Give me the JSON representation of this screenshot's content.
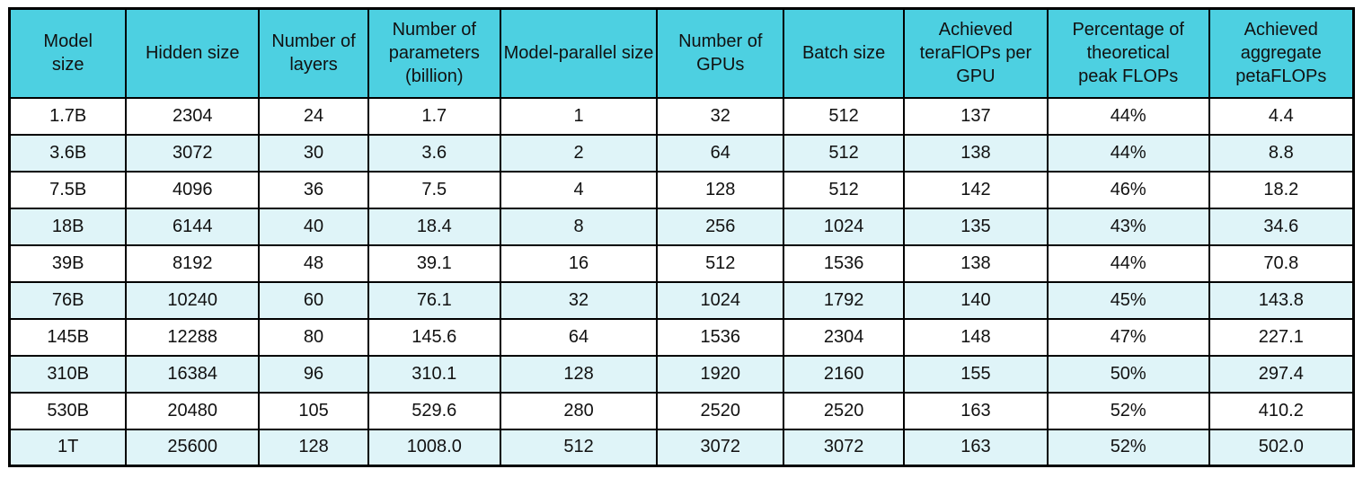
{
  "colors": {
    "header_bg": "#4DD0E1",
    "stripe_bg": "#DFF4F8",
    "border": "#000000",
    "text": "#111111"
  },
  "table": {
    "columns": [
      {
        "id": "model-size",
        "label": "Model size"
      },
      {
        "id": "hidden-size",
        "label": "Hidden size"
      },
      {
        "id": "num-layers",
        "label": "Number of layers"
      },
      {
        "id": "num-parameters-billion",
        "label": "Number of parameters (billion)"
      },
      {
        "id": "model-parallel-size",
        "label": "Model-parallel size"
      },
      {
        "id": "num-gpus",
        "label": "Number of GPUs"
      },
      {
        "id": "batch-size",
        "label": "Batch size"
      },
      {
        "id": "achieved-teraflops-per-gpu",
        "label": "Achieved teraFlOPs per GPU"
      },
      {
        "id": "pct-theoretical-peak-flops",
        "label": "Percentage of theoretical peak FLOPs"
      },
      {
        "id": "achieved-aggregate-petaflops",
        "label": "Achieved aggregate petaFLOPs"
      }
    ],
    "rows": [
      [
        "1.7B",
        "2304",
        "24",
        "1.7",
        "1",
        "32",
        "512",
        "137",
        "44%",
        "4.4"
      ],
      [
        "3.6B",
        "3072",
        "30",
        "3.6",
        "2",
        "64",
        "512",
        "138",
        "44%",
        "8.8"
      ],
      [
        "7.5B",
        "4096",
        "36",
        "7.5",
        "4",
        "128",
        "512",
        "142",
        "46%",
        "18.2"
      ],
      [
        "18B",
        "6144",
        "40",
        "18.4",
        "8",
        "256",
        "1024",
        "135",
        "43%",
        "34.6"
      ],
      [
        "39B",
        "8192",
        "48",
        "39.1",
        "16",
        "512",
        "1536",
        "138",
        "44%",
        "70.8"
      ],
      [
        "76B",
        "10240",
        "60",
        "76.1",
        "32",
        "1024",
        "1792",
        "140",
        "45%",
        "143.8"
      ],
      [
        "145B",
        "12288",
        "80",
        "145.6",
        "64",
        "1536",
        "2304",
        "148",
        "47%",
        "227.1"
      ],
      [
        "310B",
        "16384",
        "96",
        "310.1",
        "128",
        "1920",
        "2160",
        "155",
        "50%",
        "297.4"
      ],
      [
        "530B",
        "20480",
        "105",
        "529.6",
        "280",
        "2520",
        "2520",
        "163",
        "52%",
        "410.2"
      ],
      [
        "1T",
        "25600",
        "128",
        "1008.0",
        "512",
        "3072",
        "3072",
        "163",
        "52%",
        "502.0"
      ]
    ]
  },
  "chart_data": {
    "type": "table",
    "title": "",
    "columns": [
      "Model size",
      "Hidden size",
      "Number of layers",
      "Number of parameters (billion)",
      "Model-parallel size",
      "Number of GPUs",
      "Batch size",
      "Achieved teraFlOPs per GPU",
      "Percentage of theoretical peak FLOPs",
      "Achieved aggregate petaFLOPs"
    ],
    "rows": [
      [
        "1.7B",
        2304,
        24,
        1.7,
        1,
        32,
        512,
        137,
        "44%",
        4.4
      ],
      [
        "3.6B",
        3072,
        30,
        3.6,
        2,
        64,
        512,
        138,
        "44%",
        8.8
      ],
      [
        "7.5B",
        4096,
        36,
        7.5,
        4,
        128,
        512,
        142,
        "46%",
        18.2
      ],
      [
        "18B",
        6144,
        40,
        18.4,
        8,
        256,
        1024,
        135,
        "43%",
        34.6
      ],
      [
        "39B",
        8192,
        48,
        39.1,
        16,
        512,
        1536,
        138,
        "44%",
        70.8
      ],
      [
        "76B",
        10240,
        60,
        76.1,
        32,
        1024,
        1792,
        140,
        "45%",
        143.8
      ],
      [
        "145B",
        12288,
        80,
        145.6,
        64,
        1536,
        2304,
        148,
        "47%",
        227.1
      ],
      [
        "310B",
        16384,
        96,
        310.1,
        128,
        1920,
        2160,
        155,
        "50%",
        297.4
      ],
      [
        "530B",
        20480,
        105,
        529.6,
        280,
        2520,
        2520,
        163,
        "52%",
        410.2
      ],
      [
        "1T",
        25600,
        128,
        1008.0,
        512,
        3072,
        3072,
        163,
        "52%",
        502.0
      ]
    ],
    "layout": {
      "header_fill": "#4DD0E1",
      "row_striping": "even rows pale cyan #DFF4F8, odd rows white",
      "grid": "on, black lines"
    }
  }
}
